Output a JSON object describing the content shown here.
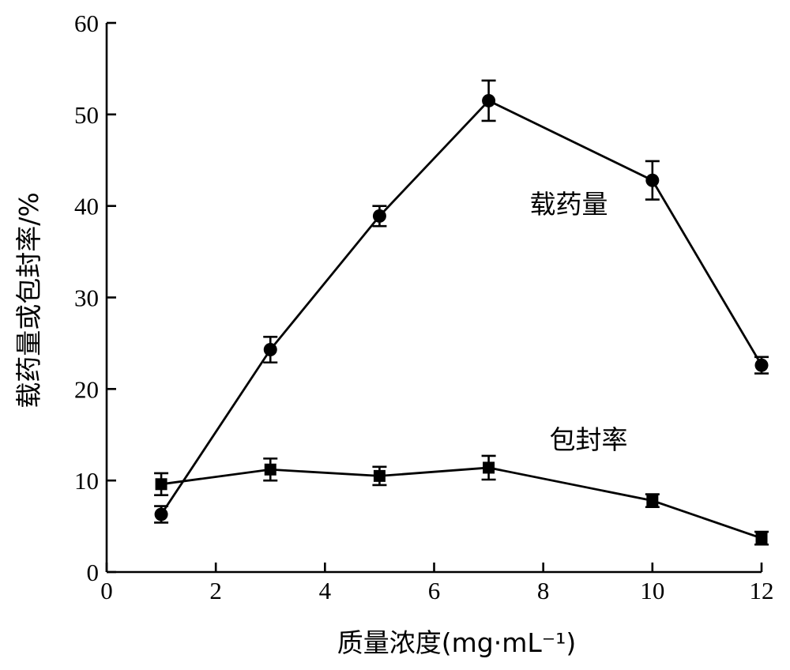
{
  "chart_data": {
    "type": "line",
    "title": "",
    "xlabel": "质量浓度(mg·mL⁻¹)",
    "ylabel": "载药量或包封率/%",
    "xlim": [
      0,
      12
    ],
    "ylim": [
      0,
      60
    ],
    "x_ticks": [
      "0",
      "2",
      "4",
      "6",
      "8",
      "10",
      "12"
    ],
    "y_ticks": [
      "0",
      "10",
      "20",
      "30",
      "40",
      "50",
      "60"
    ],
    "x_tick_values": [
      0,
      2,
      4,
      6,
      8,
      10,
      12
    ],
    "y_tick_values": [
      0,
      10,
      20,
      30,
      40,
      50,
      60
    ],
    "grid": false,
    "legend": "none",
    "series": [
      {
        "name": "载药量",
        "marker": "circle",
        "color": "#000000",
        "x": [
          1,
          3,
          5,
          7,
          10,
          12
        ],
        "y": [
          6.3,
          24.3,
          38.9,
          51.5,
          42.8,
          22.6
        ],
        "error": [
          0.9,
          1.4,
          1.1,
          2.2,
          2.1,
          0.9
        ]
      },
      {
        "name": "包封率",
        "marker": "square",
        "color": "#000000",
        "x": [
          1,
          3,
          5,
          7,
          10,
          12
        ],
        "y": [
          9.6,
          11.2,
          10.5,
          11.4,
          7.8,
          3.7
        ],
        "error": [
          1.2,
          1.2,
          1.0,
          1.3,
          0.7,
          0.7
        ]
      }
    ],
    "annotations": [
      {
        "text": "载药量",
        "series": 0
      },
      {
        "text": "包封率",
        "series": 1
      }
    ]
  }
}
